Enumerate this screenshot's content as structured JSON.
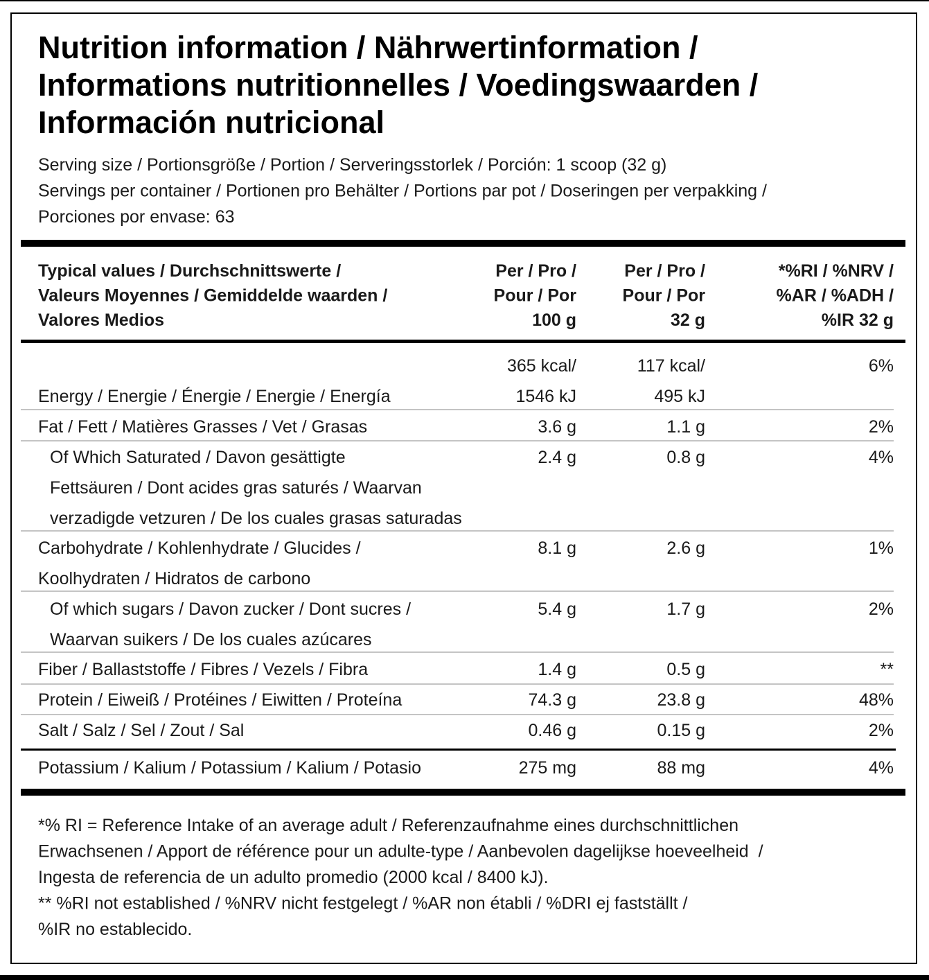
{
  "title_lines": [
    "Nutrition information / Nährwertinformation /",
    "Informations nutritionnelles / Voedingswaarden /",
    "Información nutricional"
  ],
  "serving_lines": [
    "Serving size / Portionsgröße / Portion / Serveringsstorlek / Porción: 1 scoop (32 g)",
    "Servings per container / Portionen pro Behälter / Portions par pot / Doseringen per verpakking /",
    "Porciones por envase: 63"
  ],
  "table": {
    "header": {
      "nutrient": [
        "Typical values / Durchschnittswerte /",
        "Valeurs Moyennes / Gemiddelde waarden /",
        "Valores Medios"
      ],
      "per_100g": [
        "Per / Pro /",
        "Pour / Por",
        "100 g"
      ],
      "per_serving": [
        "Per / Pro /",
        "Pour / Por",
        "32 g"
      ],
      "ri": [
        "*%RI / %NRV /",
        "%AR / %ADH /",
        "%IR 32 g"
      ]
    },
    "rows": [
      {
        "label": [
          "Energy / Energie / Énergie / Energie / Energía"
        ],
        "per_100g": [
          "365 kcal/",
          "1546 kJ"
        ],
        "per_serving": [
          "117 kcal/",
          "495 kJ"
        ],
        "ri": [
          "6%"
        ]
      },
      {
        "label": [
          "Fat / Fett / Matières Grasses / Vet / Grasas"
        ],
        "per_100g": [
          "3.6 g"
        ],
        "per_serving": [
          "1.1 g"
        ],
        "ri": [
          "2%"
        ]
      },
      {
        "label": [
          "Of Which Saturated / Davon gesättigte",
          "Fettsäuren / Dont acides gras saturés / Waarvan",
          "verzadigde vetzuren / De los cuales grasas saturadas"
        ],
        "per_100g": [
          "2.4 g"
        ],
        "per_serving": [
          "0.8 g"
        ],
        "ri": [
          "4%"
        ]
      },
      {
        "label": [
          "Carbohydrate / Kohlenhydrate / Glucides /",
          "Koolhydraten / Hidratos de carbono"
        ],
        "per_100g": [
          "8.1 g"
        ],
        "per_serving": [
          "2.6 g"
        ],
        "ri": [
          "1%"
        ]
      },
      {
        "label": [
          "Of which sugars / Davon zucker / Dont sucres /",
          "Waarvan suikers / De los cuales azúcares"
        ],
        "per_100g": [
          "5.4 g"
        ],
        "per_serving": [
          "1.7 g"
        ],
        "ri": [
          "2%"
        ]
      },
      {
        "label": [
          "Fiber / Ballaststoffe / Fibres / Vezels / Fibra"
        ],
        "per_100g": [
          "1.4 g"
        ],
        "per_serving": [
          "0.5 g"
        ],
        "ri": [
          "**"
        ]
      },
      {
        "label": [
          "Protein / Eiweiß / Protéines / Eiwitten / Proteína"
        ],
        "per_100g": [
          "74.3 g"
        ],
        "per_serving": [
          "23.8 g"
        ],
        "ri": [
          "48%"
        ]
      },
      {
        "label": [
          "Salt / Salz / Sel / Zout / Sal"
        ],
        "per_100g": [
          "0.46 g"
        ],
        "per_serving": [
          "0.15 g"
        ],
        "ri": [
          "2%"
        ]
      },
      {
        "label": [
          "Potassium / Kalium / Potassium / Kalium / Potasio"
        ],
        "per_100g": [
          "275 mg"
        ],
        "per_serving": [
          "88 mg"
        ],
        "ri": [
          "4%"
        ]
      }
    ]
  },
  "footnotes": [
    "*% RI = Reference Intake of an average adult / Referenzaufnahme eines durchschnittlichen",
    "Erwachsenen / Apport de référence pour un adulte-type / Aanbevolen dagelijkse hoeveelheid  /",
    "Ingesta de referencia de un adulto promedio (2000 kcal / 8400 kJ).",
    "** %RI not established / %NRV nicht festgelegt / %AR non établi / %DRI ej fastställt /",
    "%IR no establecido."
  ]
}
